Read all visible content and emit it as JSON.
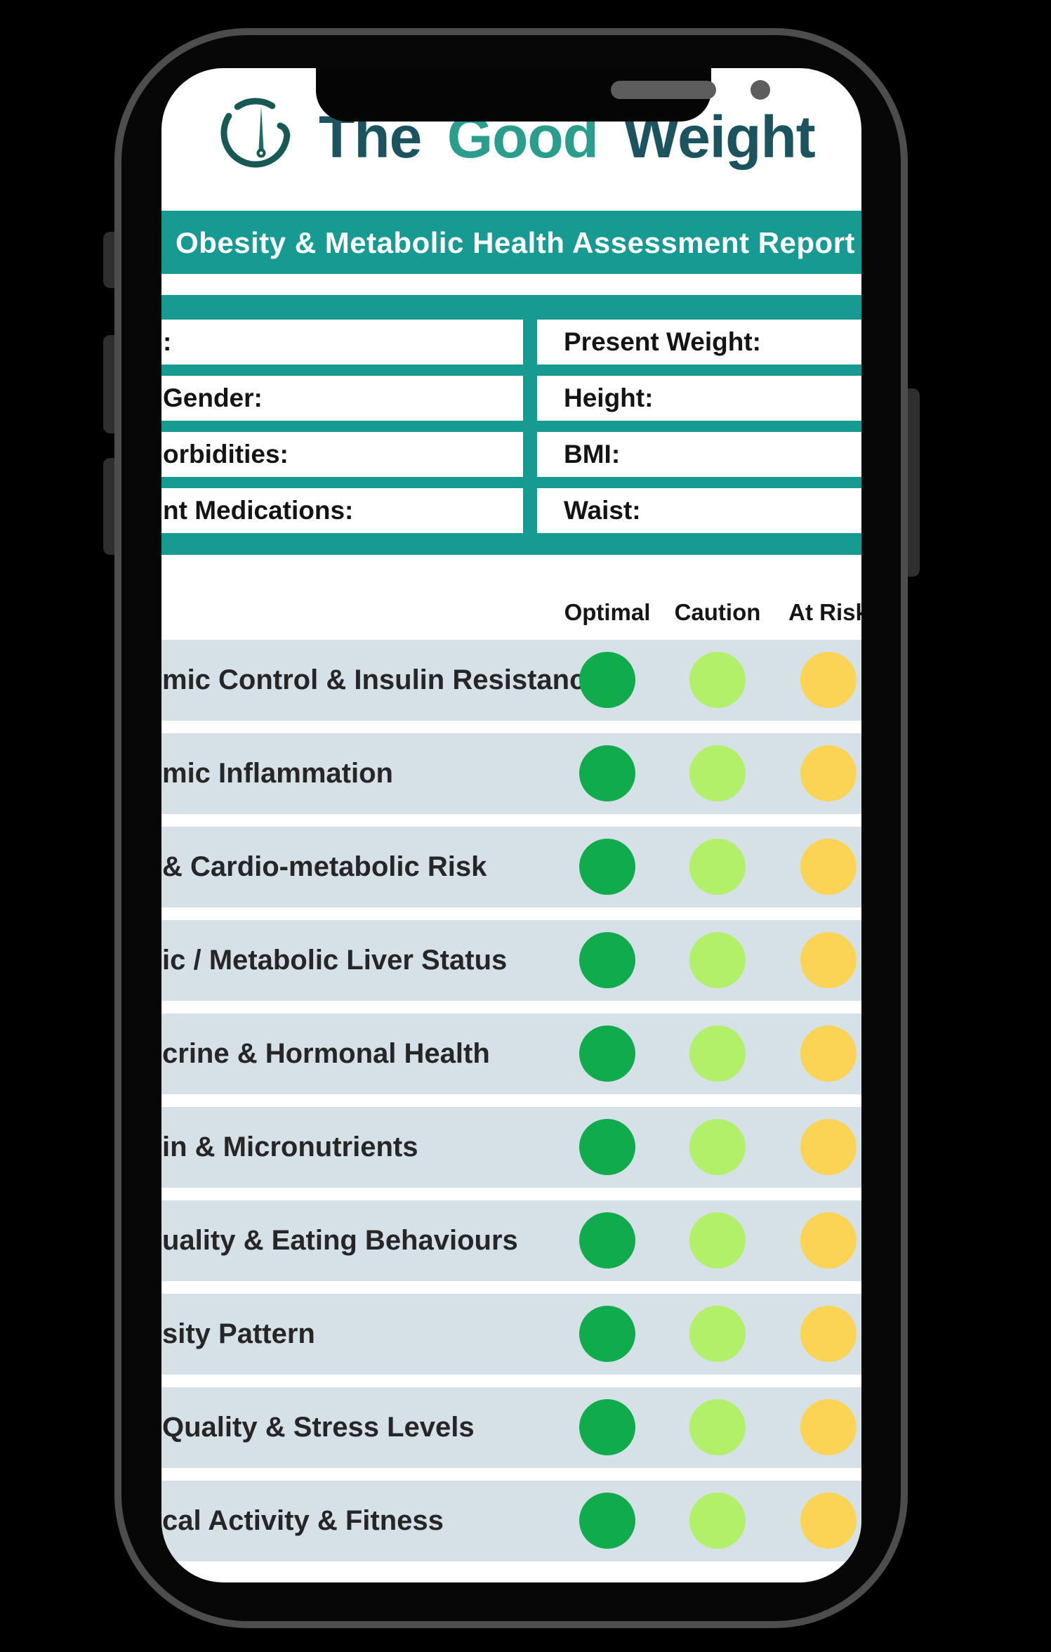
{
  "logo": {
    "part1": "The ",
    "accent": "Good",
    "part2": " Weight",
    "icon": "gauge-dial-icon"
  },
  "banner": {
    "title": "Obesity & Metabolic Health Assessment Report"
  },
  "patient_form": {
    "left_fields": [
      ":",
      "Gender:",
      "orbidities:",
      "nt Medications:"
    ],
    "right_fields": [
      "Present Weight:",
      "Height:",
      "BMI:",
      "Waist:"
    ]
  },
  "assessment": {
    "headers": [
      "Optimal",
      "Caution",
      "At Risk"
    ],
    "rows": [
      "mic Control & Insulin Resistance",
      "mic Inflammation",
      "& Cardio-metabolic Risk",
      "ic / Metabolic Liver Status",
      "crine & Hormonal Health",
      "in & Micronutrients",
      "uality & Eating Behaviours",
      "sity Pattern",
      "Quality & Stress Levels",
      "cal Activity & Fitness"
    ],
    "dot_colors": {
      "optimal": "#10ab4c",
      "caution": "#b2f069",
      "at_risk": "#fbd455"
    }
  },
  "colors": {
    "teal": "#169a92",
    "row_bg": "#d6e1e7",
    "logo_dark": "#1b545e",
    "logo_accent": "#2a9d8d",
    "frame_border": "#4d4d4d"
  }
}
